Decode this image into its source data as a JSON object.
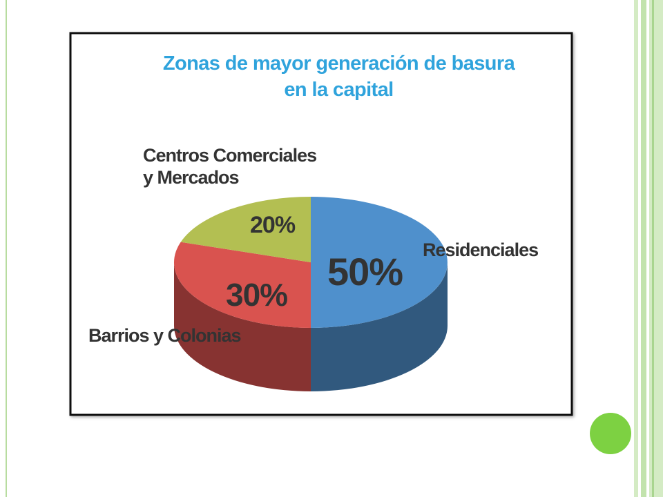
{
  "chart_data": {
    "type": "pie3d",
    "title": "Zonas de mayor generación de basura en la capital",
    "categories": [
      "Residenciales",
      "Barrios y Colonias",
      "Centros Comerciales y Mercados"
    ],
    "values": [
      50,
      30,
      20
    ],
    "value_labels": [
      "50%",
      "30%",
      "20%"
    ],
    "colors": [
      "#4f90cc",
      "#d9534f",
      "#b3bf52"
    ]
  }
}
